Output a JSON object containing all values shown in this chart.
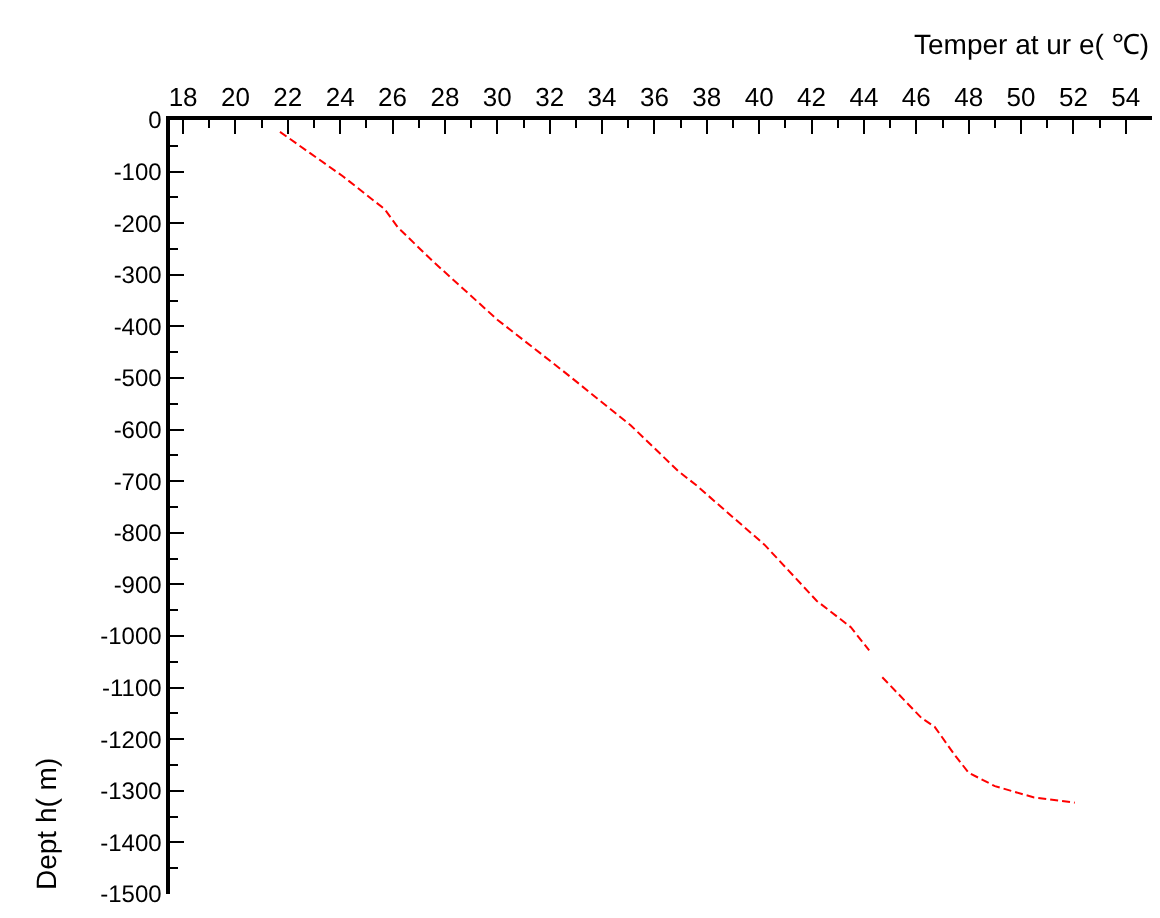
{
  "chart_data": {
    "type": "line",
    "xlabel": "Temper at ur e( ℃)",
    "ylabel": "Dept h( m)",
    "x": [
      21.7,
      24.1,
      25.7,
      26.2,
      27.5,
      30.0,
      32.6,
      35.1,
      36.9,
      37.6,
      40.2,
      42.2,
      43.5,
      44.2,
      44.45,
      44.7,
      46.2,
      46.7,
      47.5,
      48.0,
      49.0,
      50.5,
      52.05
    ],
    "series": [
      {
        "color": "#ff0000",
        "values": [
          -23,
          -109,
          -173,
          -208,
          -272,
          -387,
          -490,
          -592,
          -680,
          -708,
          -823,
          -932,
          -983,
          -1028,
          null,
          -1080,
          -1159,
          -1176,
          -1233,
          -1265,
          -1291,
          -1313,
          -1323
        ]
      }
    ],
    "line_style": "dashed",
    "marker": "none",
    "xlim": [
      17.5,
      55
    ],
    "xticks": [
      18,
      20,
      22,
      24,
      26,
      28,
      30,
      32,
      34,
      36,
      38,
      40,
      42,
      44,
      46,
      48,
      50,
      52,
      54
    ],
    "ylim": [
      -1500,
      0
    ],
    "yticks": [
      0,
      -100,
      -200,
      -300,
      -400,
      -500,
      -600,
      -700,
      -800,
      -900,
      -1000,
      -1100,
      -1200,
      -1300,
      -1400,
      -1500
    ]
  }
}
